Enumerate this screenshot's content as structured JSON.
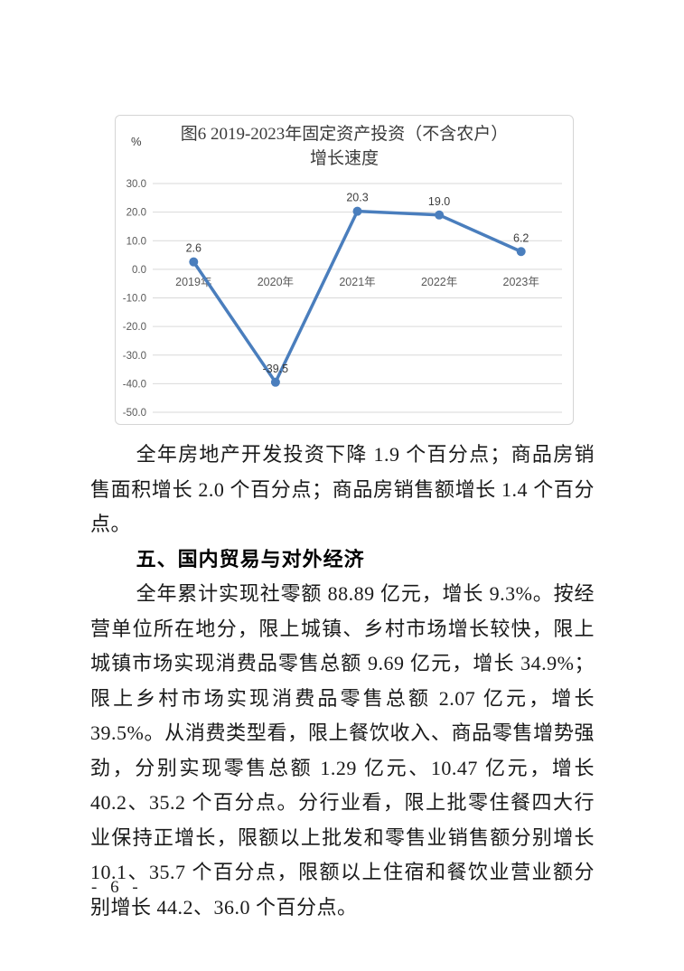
{
  "page": {
    "number_label": "- 6 -"
  },
  "figure": {
    "unit": "%",
    "title_line1": "图6  2019-2023年固定资产投资（不含农户）",
    "title_line2": "增长速度"
  },
  "chart_data": {
    "type": "line",
    "categories": [
      "2019年",
      "2020年",
      "2021年",
      "2022年",
      "2023年"
    ],
    "values": [
      2.6,
      -39.5,
      20.3,
      19.0,
      6.2
    ],
    "title": "图6 2019-2023年固定资产投资（不含农户）增长速度",
    "xlabel": "",
    "ylabel": "%",
    "ylim": [
      -50,
      30
    ],
    "ytick_step": 10,
    "grid": true,
    "legend_position": "none",
    "data_labels": true,
    "line_color": "#4A7EBD",
    "gridline_color": "#D9D9D9",
    "axis_text_color": "#595959",
    "label_text_color": "#3d3d3d"
  },
  "content": {
    "paragraph1": "全年房地产开发投资下降 1.9 个百分点；商品房销售面积增长 2.0 个百分点；商品房销售额增长 1.4 个百分点。",
    "heading": "五、国内贸易与对外经济",
    "paragraph2": "全年累计实现社零额 88.89 亿元，增长 9.3%。按经营单位所在地分，限上城镇、乡村市场增长较快，限上城镇市场实现消费品零售总额 9.69 亿元，增长 34.9%；限上乡村市场实现消费品零售总额 2.07 亿元，增长 39.5%。从消费类型看，限上餐饮收入、商品零售增势强劲，分别实现零售总额 1.29 亿元、10.47 亿元，增长 40.2、35.2 个百分点。分行业看，限上批零住餐四大行业保持正增长，限额以上批发和零售业销售额分别增长 10.1、35.7 个百分点，限额以上住宿和餐饮业营业额分别增长 44.2、36.0 个百分点。"
  }
}
